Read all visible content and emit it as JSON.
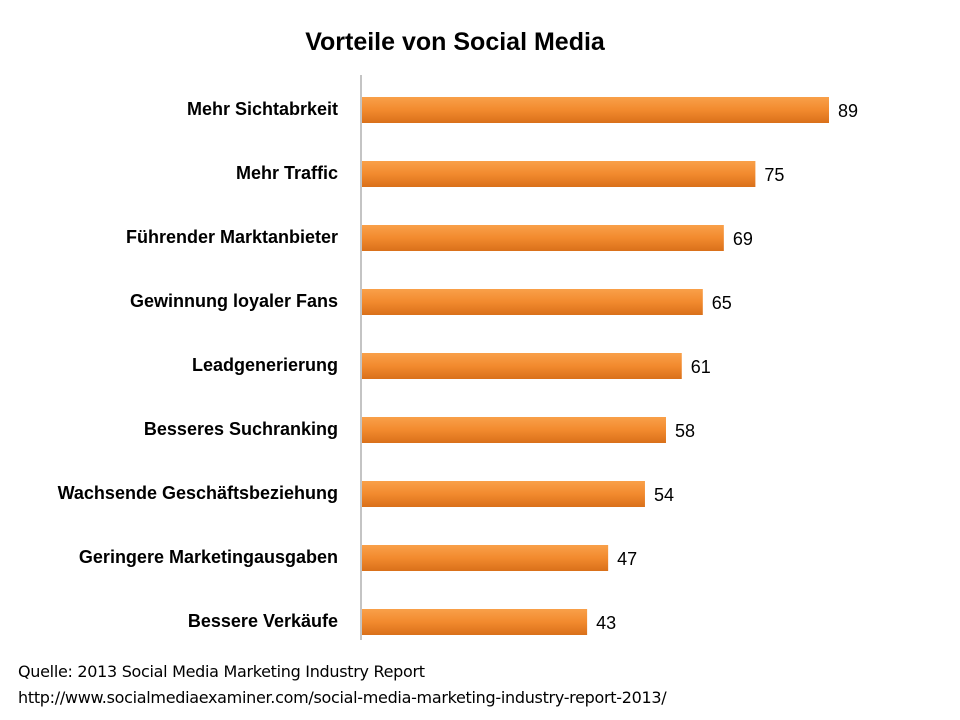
{
  "chart_data": {
    "type": "bar",
    "orientation": "horizontal",
    "title": "Vorteile von Social Media",
    "categories": [
      "Mehr Sichtabrkeit",
      "Mehr Traffic",
      "Führender Marktanbieter",
      "Gewinnung loyaler Fans",
      "Leadgenerierung",
      "Besseres Suchranking",
      "Wachsende Geschäftsbeziehung",
      "Geringere Marketingausgaben",
      "Bessere Verkäufe"
    ],
    "values": [
      89,
      75,
      69,
      65,
      61,
      58,
      54,
      47,
      43
    ],
    "xlim": [
      0,
      100
    ],
    "grid": false,
    "data_labels": true,
    "bar_color": "#F28A2E"
  },
  "source": {
    "line1": "Quelle: 2013 Social Media Marketing Industry Report",
    "line2": "http://www.socialmediaexaminer.com/social-media-marketing-industry-report-2013/"
  }
}
